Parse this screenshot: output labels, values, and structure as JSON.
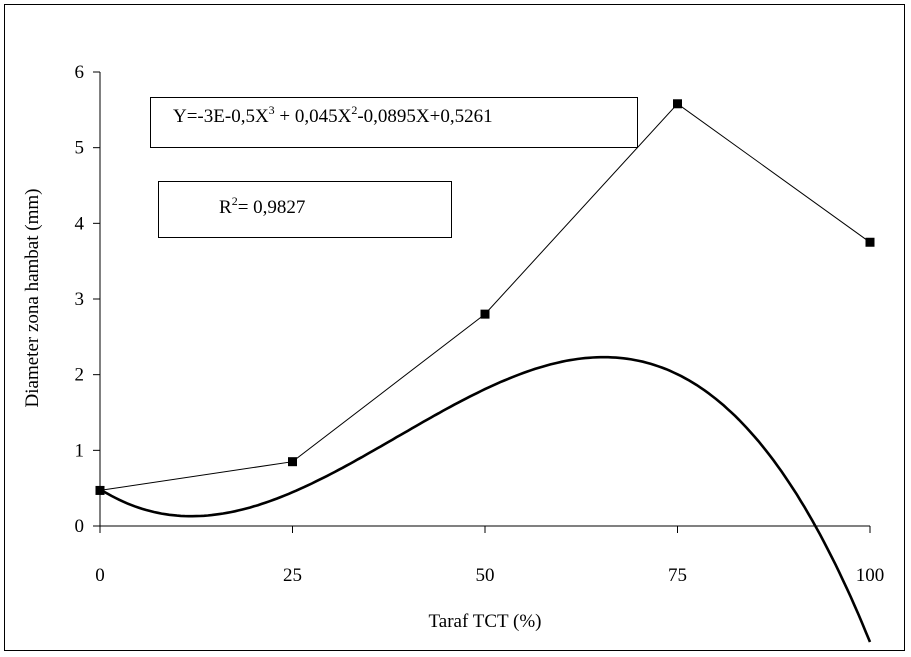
{
  "chart_data": {
    "type": "line",
    "xlabel": "Taraf TCT (%)",
    "ylabel": "Diameter zona hambat (mm)",
    "xlim": [
      0,
      100
    ],
    "ylim": [
      0,
      6
    ],
    "x_ticks": [
      "0",
      "25",
      "50",
      "75",
      "100"
    ],
    "y_ticks": [
      "0",
      "1",
      "2",
      "3",
      "4",
      "5",
      "6"
    ],
    "grid": false,
    "series": [
      {
        "x": [
          0,
          25,
          50,
          75,
          100
        ],
        "values": [
          0.47,
          0.85,
          2.8,
          5.58,
          3.75
        ],
        "marker": "square"
      }
    ],
    "trendline": {
      "type": "polynomial-3",
      "coefficients": [
        -3e-05,
        0.045,
        -0.0895,
        0.5261
      ]
    },
    "annotations": {
      "equation": {
        "pre": "Y=-3E-0,5X",
        "sup1": "3",
        "mid": " + 0,045X",
        "sup2": "2",
        "post": "-0,0895X+0,5261"
      },
      "r_squared": {
        "pre": "R",
        "sup": "2",
        "post": "= 0,9827"
      }
    },
    "colors": {
      "line": "#000000",
      "marker": "#000000",
      "background": "#ffffff"
    }
  }
}
